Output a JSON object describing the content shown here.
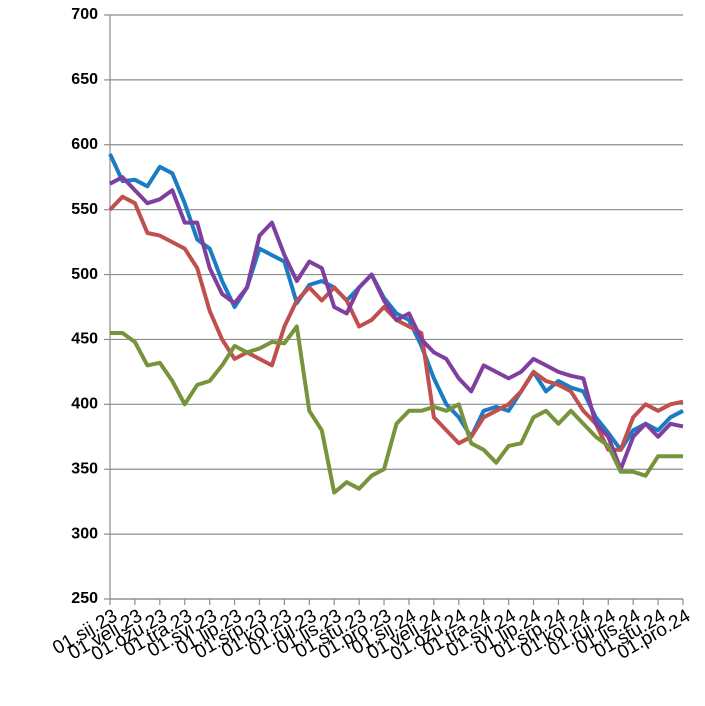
{
  "chart_data": {
    "type": "line",
    "categories": [
      "01.sij.23",
      null,
      "01.velj.23",
      null,
      "01.ožu.23",
      null,
      "01.tra.23",
      null,
      "01.svi.23",
      null,
      "01.lip.23",
      null,
      "01.srp.23",
      null,
      "01.kol.23",
      null,
      "01.ruj.23",
      null,
      "01.lis.23",
      null,
      "01.stu.23",
      null,
      "01.pro.23",
      null,
      "01.sij.24",
      null,
      "01.velj.24",
      null,
      "01.ožu.24",
      null,
      "01.tra.24",
      null,
      "01.svi.24",
      null,
      "01.lip.24",
      null,
      "01.srp.24",
      null,
      "01.kol.24",
      null,
      "01.ruj.24",
      null,
      "01.lis.24",
      null,
      "01.stu.24",
      null,
      "01.pro.24"
    ],
    "series": [
      {
        "color": "#1a7dc4",
        "values": [
          593,
          572,
          573,
          568,
          583,
          578,
          555,
          527,
          520,
          495,
          475,
          490,
          520,
          515,
          510,
          478,
          492,
          495,
          490,
          480,
          490,
          500,
          482,
          470,
          465,
          445,
          420,
          400,
          390,
          375,
          395,
          398,
          395,
          410,
          425,
          410,
          418,
          413,
          410,
          390,
          378,
          365,
          380,
          385,
          380,
          390,
          395
        ]
      },
      {
        "color": "#c0504d",
        "values": [
          550,
          560,
          555,
          532,
          530,
          525,
          520,
          505,
          472,
          450,
          435,
          440,
          435,
          430,
          460,
          480,
          490,
          480,
          490,
          480,
          460,
          465,
          475,
          465,
          460,
          455,
          390,
          380,
          370,
          375,
          390,
          395,
          400,
          410,
          425,
          418,
          415,
          410,
          395,
          385,
          365,
          365,
          390,
          400,
          395,
          400,
          402
        ]
      },
      {
        "color": "#7f3f9f",
        "values": [
          570,
          575,
          565,
          555,
          558,
          565,
          540,
          540,
          505,
          485,
          478,
          490,
          530,
          540,
          515,
          495,
          510,
          505,
          475,
          470,
          490,
          500,
          480,
          465,
          470,
          450,
          440,
          435,
          420,
          410,
          430,
          425,
          420,
          425,
          435,
          430,
          425,
          422,
          420,
          385,
          375,
          350,
          375,
          385,
          375,
          385,
          383
        ]
      },
      {
        "color": "#77933c",
        "values": [
          455,
          455,
          448,
          430,
          432,
          418,
          400,
          415,
          418,
          430,
          445,
          440,
          443,
          448,
          447,
          460,
          395,
          380,
          332,
          340,
          335,
          345,
          350,
          385,
          395,
          395,
          398,
          395,
          400,
          370,
          365,
          355,
          368,
          370,
          390,
          395,
          385,
          395,
          385,
          375,
          368,
          348,
          348,
          345,
          360,
          360,
          360
        ]
      }
    ],
    "ylim": [
      250,
      700
    ],
    "yticks": [
      250,
      300,
      350,
      400,
      450,
      500,
      550,
      600,
      650,
      700
    ],
    "grid": true
  }
}
